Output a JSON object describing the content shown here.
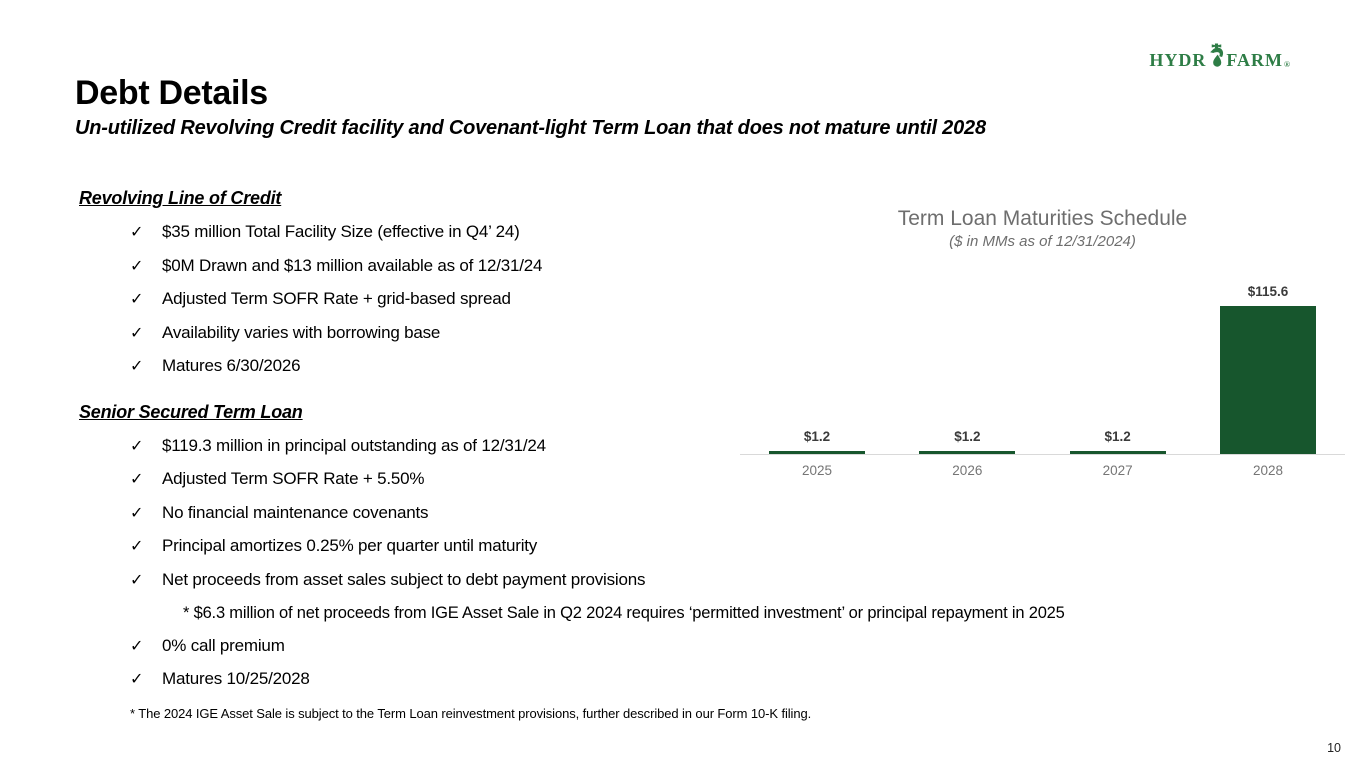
{
  "slide": {
    "title": "Debt Details",
    "subtitle": "Un-utilized Revolving Credit facility and Covenant-light Term Loan that does not mature until 2028",
    "footnote": "* The 2024 IGE Asset Sale is subject to the Term Loan reinvestment provisions, further described in our Form 10-K filing.",
    "page_number": "10"
  },
  "logo": {
    "brand_left": "HYDR",
    "brand_right": "FARM",
    "registered_mark": "®",
    "color": "#2e7d46"
  },
  "bullet_glyph": "✓",
  "sections": [
    {
      "heading": "Revolving Line of Credit",
      "items": [
        "$35 million Total Facility Size (effective in Q4’ 24)",
        "$0M Drawn and $13 million available as of 12/31/24",
        "Adjusted Term SOFR Rate + grid-based spread",
        "Availability varies with borrowing base",
        "Matures 6/30/2026"
      ]
    },
    {
      "heading": "Senior Secured Term Loan",
      "items": [
        "$119.3 million in principal outstanding as of 12/31/24",
        "Adjusted Term SOFR Rate + 5.50%",
        "No financial maintenance covenants",
        "Principal amortizes 0.25% per quarter until maturity",
        "Net proceeds from asset sales subject to debt payment provisions"
      ],
      "subnote": "* $6.3 million of net proceeds from IGE Asset Sale in Q2 2024 requires ‘permitted investment’ or principal repayment in 2025",
      "items_after": [
        "0% call premium",
        "Matures 10/25/2028"
      ]
    }
  ],
  "chart_data": {
    "type": "bar",
    "title": "Term Loan Maturities Schedule",
    "subtitle": "($ in MMs as of 12/31/2024)",
    "categories": [
      "2025",
      "2026",
      "2027",
      "2028"
    ],
    "values": [
      1.2,
      1.2,
      1.2,
      115.6
    ],
    "data_labels": [
      "$1.2",
      "$1.2",
      "$1.2",
      "$115.6"
    ],
    "xlabel": "",
    "ylabel": "",
    "ylim": [
      0,
      120
    ],
    "grid": false,
    "legend": false,
    "bar_color": "#17562d",
    "axis_line_color": "#d9d9d9",
    "data_label_color": "#3b3b3b",
    "tick_label_color": "#757575",
    "title_color": "#6e6e6e"
  }
}
